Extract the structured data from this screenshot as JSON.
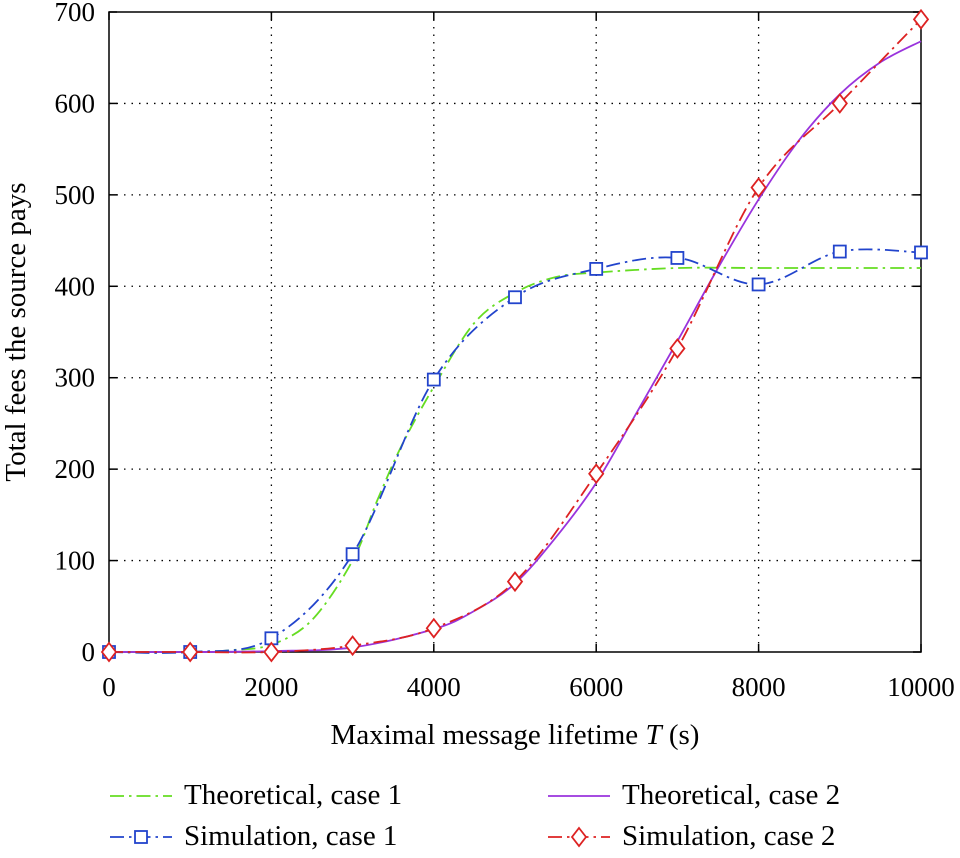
{
  "chart_data": {
    "type": "line",
    "title": "",
    "xlabel_prefix": "Maximal message lifetime ",
    "xlabel_var": "T",
    "xlabel_suffix": " (s)",
    "ylabel": "Total fees the source pays",
    "xlim": [
      0,
      10000
    ],
    "ylim": [
      0,
      700
    ],
    "xticks": [
      0,
      2000,
      4000,
      6000,
      8000,
      10000
    ],
    "yticks": [
      0,
      100,
      200,
      300,
      400,
      500,
      600,
      700
    ],
    "grid": true,
    "legend_position": "bottom",
    "series": [
      {
        "name": "Theoretical, case 1",
        "style": "dash-dot",
        "marker": "none",
        "color": "#66dd22",
        "x": [
          0,
          1000,
          1500,
          2000,
          2500,
          3000,
          3300,
          3600,
          4000,
          4500,
          5000,
          5500,
          6000,
          7000,
          8000,
          9000,
          10000
        ],
        "y": [
          0,
          0,
          2,
          8,
          35,
          100,
          165,
          225,
          290,
          360,
          393,
          410,
          415,
          420,
          420,
          420,
          420
        ]
      },
      {
        "name": "Theoretical, case 2",
        "style": "solid",
        "marker": "none",
        "color": "#9933dd",
        "x": [
          0,
          1000,
          2000,
          3000,
          4000,
          4500,
          5000,
          5500,
          6000,
          6500,
          7000,
          7500,
          8000,
          8500,
          9000,
          9500,
          10000
        ],
        "y": [
          0,
          0,
          1,
          5,
          25,
          45,
          75,
          125,
          185,
          262,
          340,
          420,
          495,
          560,
          610,
          645,
          668
        ]
      },
      {
        "name": "Simulation, case 1",
        "style": "dash-dot",
        "marker": "square",
        "color": "#2244cc",
        "x": [
          0,
          1000,
          2000,
          3000,
          4000,
          5000,
          6000,
          7000,
          8000,
          9000,
          10000
        ],
        "y": [
          0,
          0,
          15,
          107,
          298,
          388,
          419,
          431,
          402,
          438,
          437
        ]
      },
      {
        "name": "Simulation, case 2",
        "style": "dash-dot",
        "marker": "diamond",
        "color": "#dd2222",
        "x": [
          0,
          1000,
          2000,
          3000,
          4000,
          5000,
          6000,
          7000,
          8000,
          9000,
          10000
        ],
        "y": [
          0,
          0,
          0,
          7,
          26,
          77,
          195,
          332,
          508,
          600,
          692
        ]
      }
    ]
  }
}
